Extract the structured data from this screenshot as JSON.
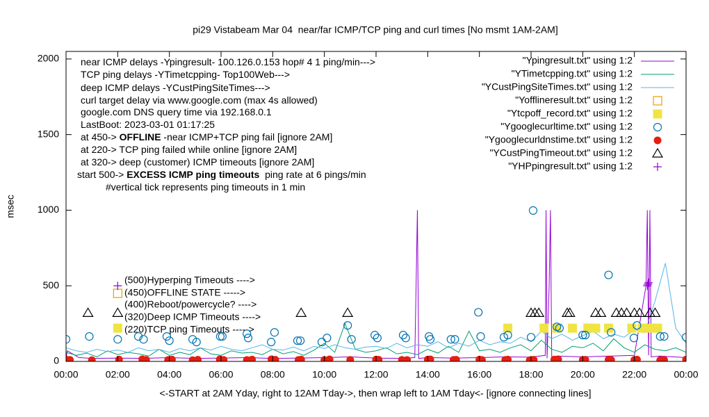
{
  "chart_data": {
    "type": "line",
    "title": "pi29 Vistabeam Mar 04  near/far ICMP/TCP ping and curl times [No msmt 1AM-2AM]",
    "x_label": "<-START at 2AM Yday, right to 12AM Tday->, then wrap left to 1AM Tday<- [ignore connecting lines]",
    "y_label": "msec",
    "xlim": [
      0,
      24
    ],
    "xticks": [
      {
        "value": 0,
        "label": "00:00"
      },
      {
        "value": 2,
        "label": "02:00"
      },
      {
        "value": 4,
        "label": "04:00"
      },
      {
        "value": 6,
        "label": "06:00"
      },
      {
        "value": 8,
        "label": "08:00"
      },
      {
        "value": 10,
        "label": "10:00"
      },
      {
        "value": 12,
        "label": "12:00"
      },
      {
        "value": 14,
        "label": "14:00"
      },
      {
        "value": 16,
        "label": "16:00"
      },
      {
        "value": 18,
        "label": "18:00"
      },
      {
        "value": 20,
        "label": "20:00"
      },
      {
        "value": 22,
        "label": "22:00"
      },
      {
        "value": 24,
        "label": "00:00"
      }
    ],
    "ylim": [
      0,
      2050
    ],
    "yticks": [
      0,
      500,
      1000,
      1500,
      2000
    ],
    "grid": false,
    "legend": "top-right",
    "annotations": [
      [
        "near ICMP delays -Ypingresult- 100.126.0.153 hop# 4 1 ping/min--->"
      ],
      [
        "TCP ping delays -YTimetcpping- Top100Web--->"
      ],
      [
        "deep ICMP delays -YCustPingSiteTimes--->"
      ],
      [
        "curl target delay via www.google.com (max 4s allowed)"
      ],
      [
        "google.com DNS query time via 192.168.0.1"
      ],
      [
        "LastBoot: 2023-03-01 01:17:25"
      ],
      [
        "at 450-> ",
        "OFFLINE",
        " -near ICMP+TCP ping fail [ignore 2AM]"
      ],
      [
        "at 220-> TCP ping failed while online [ignore 2AM]"
      ],
      [
        "at 320-> deep (customer) ICMP timeouts [ignore 2AM]"
      ],
      [
        "start 500-> ",
        "EXCESS ICMP ping timeouts",
        "  ping rate at 6 pings/min"
      ],
      [
        "#vertical tick represents ping timeouts in 1 min"
      ]
    ],
    "key_notes": [
      "(500)Hyperping Timeouts ---->",
      "(450)OFFLINE STATE ----->",
      "(400)Reboot/powercycle? ---->",
      "(320)Deep ICMP Timeouts ---->",
      "(220)TCP ping Timeouts ----->"
    ],
    "series": [
      {
        "name": "\"Ypingresult.txt\" using 1:2",
        "mark": "line",
        "color": "#9400d3",
        "x": [
          0,
          0.05,
          0.5,
          1,
          2,
          3,
          4,
          5,
          6,
          7,
          8,
          9,
          10,
          11,
          12,
          13,
          13.5,
          13.55,
          13.6,
          13.65,
          14,
          15,
          16,
          17,
          18,
          18.55,
          18.58,
          18.62,
          18.7,
          18.75,
          18.8,
          19,
          20,
          21,
          22,
          22.45,
          22.5,
          22.55,
          22.6,
          22.65,
          23,
          24
        ],
        "values": [
          20,
          70,
          25,
          20,
          22,
          20,
          25,
          20,
          22,
          25,
          20,
          22,
          25,
          30,
          22,
          20,
          25,
          500,
          1000,
          20,
          25,
          22,
          25,
          30,
          28,
          40,
          1000,
          20,
          500,
          1000,
          30,
          35,
          30,
          35,
          40,
          500,
          1000,
          40,
          1000,
          30,
          35,
          25
        ]
      },
      {
        "name": "\"YTimetcpping.txt\" using 1:2",
        "mark": "line",
        "color": "#009e73",
        "x": [
          0,
          0.4,
          0.8,
          1.2,
          1.6,
          2,
          2.4,
          2.8,
          3.2,
          3.6,
          4,
          4.4,
          4.8,
          5.2,
          5.6,
          6,
          6.4,
          6.8,
          7.2,
          7.6,
          8,
          8.4,
          8.8,
          9.2,
          9.6,
          10,
          10.4,
          10.8,
          11.2,
          11.6,
          12,
          12.4,
          12.8,
          13.2,
          13.6,
          14,
          14.4,
          14.8,
          15.2,
          15.6,
          16,
          16.4,
          16.8,
          17.2,
          17.6,
          18,
          18.4,
          18.8,
          19.2,
          19.6,
          20,
          20.4,
          20.8,
          21.2,
          21.6,
          22,
          22.4,
          22.8,
          23.2,
          23.6,
          24
        ],
        "values": [
          60,
          40,
          55,
          30,
          70,
          45,
          60,
          50,
          35,
          80,
          40,
          60,
          45,
          90,
          50,
          40,
          70,
          55,
          60,
          45,
          80,
          50,
          65,
          40,
          75,
          120,
          60,
          250,
          80,
          60,
          70,
          90,
          50,
          60,
          45,
          80,
          55,
          100,
          60,
          200,
          70,
          80,
          60,
          90,
          110,
          70,
          140,
          80,
          60,
          100,
          90,
          120,
          70,
          150,
          90,
          60,
          110,
          80,
          70,
          90,
          60
        ]
      },
      {
        "name": "\"YCustPingSiteTimes.txt\" using 1:2",
        "mark": "line",
        "color": "#56b4e9",
        "x": [
          0,
          0.4,
          0.8,
          1.2,
          1.6,
          2,
          2.4,
          2.8,
          3.2,
          3.6,
          4,
          4.4,
          4.8,
          5.2,
          5.6,
          6,
          6.4,
          6.8,
          7.2,
          7.6,
          8,
          8.4,
          8.8,
          9.2,
          9.6,
          10,
          10.4,
          10.8,
          11.2,
          11.6,
          12,
          12.4,
          12.8,
          13.2,
          13.6,
          14,
          14.4,
          14.8,
          15.2,
          15.6,
          16,
          16.4,
          16.8,
          17.2,
          17.6,
          18,
          18.4,
          18.8,
          19.2,
          19.6,
          20,
          20.4,
          20.8,
          21.2,
          21.6,
          22,
          22.4,
          22.8,
          23.2,
          23.6,
          24
        ],
        "values": [
          90,
          70,
          60,
          80,
          65,
          75,
          60,
          90,
          70,
          80,
          60,
          85,
          70,
          90,
          75,
          100,
          80,
          70,
          90,
          110,
          80,
          75,
          95,
          70,
          100,
          85,
          110,
          90,
          80,
          95,
          100,
          85,
          120,
          90,
          110,
          100,
          130,
          90,
          120,
          100,
          140,
          110,
          130,
          120,
          160,
          130,
          200,
          150,
          180,
          140,
          170,
          200,
          150,
          180,
          160,
          210,
          190,
          400,
          650,
          220,
          120
        ]
      },
      {
        "name": "\"Yofflineresult.txt\" using 1:2",
        "mark": "square-open",
        "color": "#e69f00",
        "x": [
          2.0
        ],
        "values": [
          450
        ]
      },
      {
        "name": "\"Ytcpoff_record.txt\" using 1:2",
        "mark": "square-filled",
        "color": "#f0e442",
        "x": [
          2.0,
          17.1,
          18.5,
          19.0,
          19.6,
          20.2,
          20.5,
          21.0,
          21.9,
          22.3,
          22.6,
          22.9
        ],
        "values": [
          220,
          220,
          220,
          220,
          220,
          220,
          220,
          220,
          220,
          220,
          220,
          220
        ]
      },
      {
        "name": "\"Ygooglecurltime.txt\" using 1:2",
        "mark": "circle-open",
        "color": "#0072b2",
        "x": [
          0.0,
          0.9,
          2.0,
          2.8,
          3.0,
          3.9,
          4.0,
          4.9,
          5.05,
          5.97,
          6.05,
          7.0,
          7.05,
          7.94,
          8.07,
          8.96,
          9.07,
          9.9,
          10.1,
          10.9,
          11.05,
          11.95,
          12.05,
          13.05,
          13.15,
          14.05,
          14.1,
          14.9,
          15.05,
          15.96,
          16.05,
          16.95,
          17.1,
          18.0,
          18.08,
          19.0,
          19.1,
          20.0,
          20.1,
          21.0,
          21.1,
          21.98,
          22.1,
          23.0,
          23.15,
          24.0
        ],
        "values": [
          146,
          165,
          146,
          165,
          146,
          165,
          137,
          146,
          128,
          165,
          165,
          183,
          155,
          128,
          192,
          137,
          137,
          128,
          155,
          238,
          146,
          174,
          155,
          174,
          155,
          165,
          146,
          146,
          146,
          325,
          165,
          160,
          174,
          160,
          998,
          229,
          220,
          174,
          174,
          572,
          192,
          155,
          238,
          165,
          165,
          160
        ]
      },
      {
        "name": "\"Ygooglecurldnstime.txt\" using 1:2",
        "mark": "circle-filled",
        "color": "#e51e10",
        "x": [
          0.0,
          0.15,
          1.0,
          2.05,
          2.95,
          3.1,
          3.95,
          4.1,
          4.9,
          5.1,
          5.95,
          6.1,
          7.0,
          7.2,
          7.95,
          8.1,
          9.0,
          9.1,
          10.0,
          10.2,
          11.0,
          12.0,
          12.1,
          13.0,
          13.2,
          14.0,
          14.1,
          15.0,
          15.1,
          16.0,
          16.1,
          17.0,
          17.1,
          17.95,
          18.1,
          18.9,
          19.05,
          20.0,
          20.1,
          21.0,
          21.1,
          22.0,
          22.1,
          23.0,
          23.15,
          24.0
        ],
        "values": [
          12,
          10,
          8,
          12,
          14,
          10,
          9,
          12,
          8,
          11,
          13,
          10,
          9,
          12,
          14,
          11,
          10,
          12,
          9,
          13,
          10,
          12,
          11,
          10,
          9,
          12,
          13,
          10,
          11,
          12,
          9,
          10,
          12,
          8,
          11,
          12,
          14,
          10,
          11,
          12,
          9,
          10,
          12,
          8,
          10,
          12
        ]
      },
      {
        "name": "\"YCustPingTimeout.txt\" using 1:2",
        "mark": "triangle-open",
        "color": "#000000",
        "x": [
          0.85,
          2.0,
          9.1,
          10.9,
          18.0,
          18.15,
          18.3,
          19.4,
          19.5,
          20.5,
          20.7,
          21.3,
          21.5,
          21.7,
          22.0,
          22.2,
          22.6,
          22.8
        ],
        "values": [
          320,
          320,
          320,
          320,
          320,
          320,
          320,
          320,
          320,
          320,
          320,
          320,
          320,
          320,
          320,
          320,
          320,
          320
        ]
      },
      {
        "name": "\"YHPpingresult.txt\" using 1:2",
        "mark": "plus",
        "color": "#9400d3",
        "x": [
          2.0,
          22.5,
          22.52,
          22.55
        ],
        "values": [
          500,
          500,
          510,
          520
        ]
      }
    ]
  }
}
